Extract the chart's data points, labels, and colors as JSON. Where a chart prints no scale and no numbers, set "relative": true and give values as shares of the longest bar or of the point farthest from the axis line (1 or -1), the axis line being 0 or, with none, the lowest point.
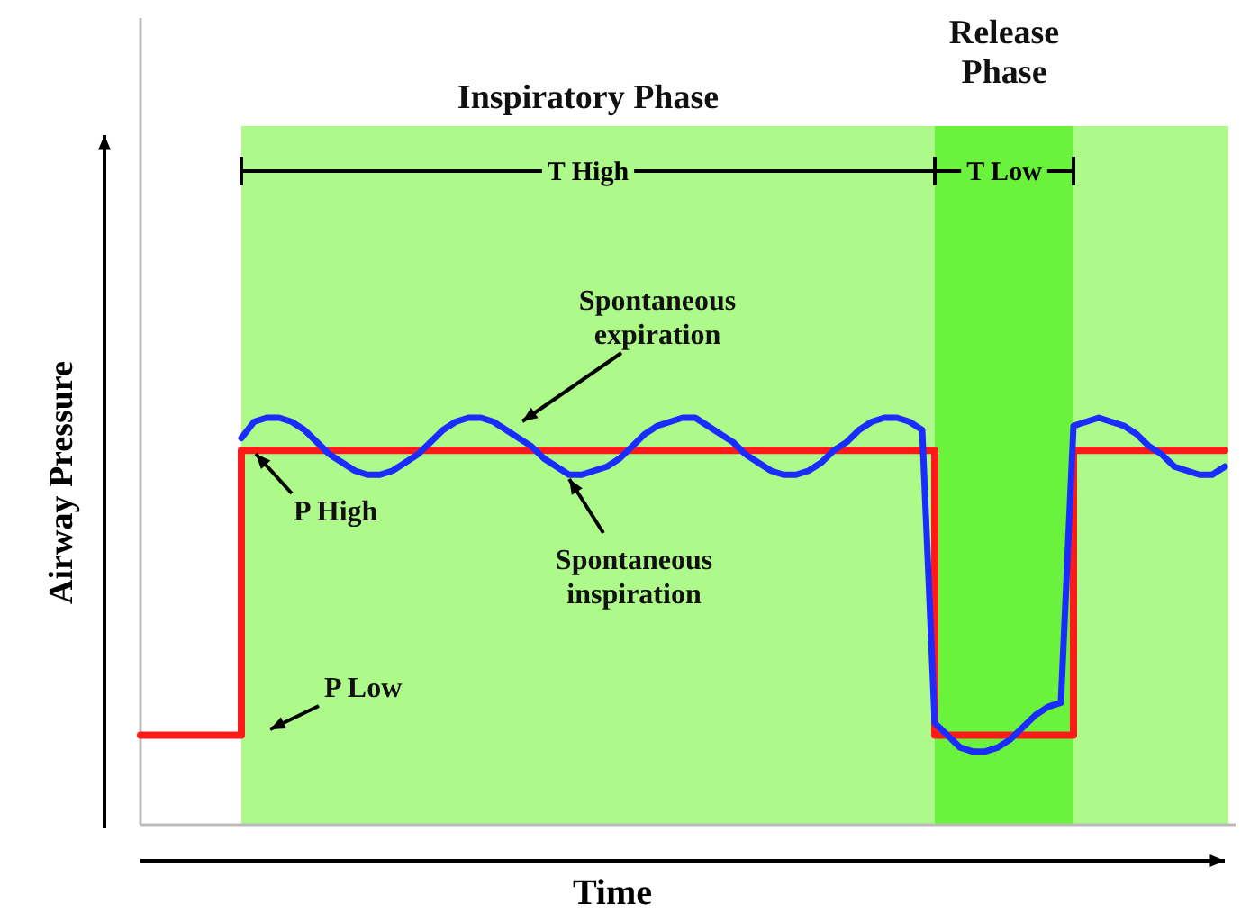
{
  "chart_data": {
    "type": "line",
    "relative": true,
    "xlabel": "Time",
    "ylabel": "Airway Pressure",
    "categories": [
      null,
      null,
      null,
      null,
      null,
      null,
      null,
      null,
      null,
      null,
      null,
      null,
      null,
      null,
      null,
      null,
      null,
      null,
      null,
      null,
      null,
      null,
      null,
      null,
      null,
      null,
      null,
      null,
      null,
      null,
      null,
      null,
      null,
      null,
      null,
      null,
      null,
      null,
      null,
      null,
      null,
      null,
      null,
      null,
      null,
      null,
      null,
      null,
      null,
      null,
      null,
      null,
      null,
      null,
      null,
      null,
      null,
      null,
      null,
      null,
      null,
      null,
      null,
      null,
      null,
      null,
      null,
      null,
      null,
      null,
      null,
      null,
      null,
      null,
      null,
      null,
      null,
      null,
      null,
      null,
      null,
      null,
      null,
      null,
      null,
      null,
      null
    ],
    "series": [
      {
        "type": "step",
        "color": "#ff1a1a",
        "values": [
          0.22,
          0.22,
          0.22,
          0.22,
          0.22,
          0.22,
          0.22,
          0.22,
          0.92,
          0.92,
          0.92,
          0.92,
          0.92,
          0.92,
          0.92,
          0.92,
          0.92,
          0.92,
          0.92,
          0.92,
          0.92,
          0.92,
          0.92,
          0.92,
          0.92,
          0.92,
          0.92,
          0.92,
          0.92,
          0.92,
          0.92,
          0.92,
          0.92,
          0.92,
          0.92,
          0.92,
          0.92,
          0.92,
          0.92,
          0.92,
          0.92,
          0.92,
          0.92,
          0.92,
          0.92,
          0.92,
          0.92,
          0.92,
          0.92,
          0.92,
          0.92,
          0.92,
          0.92,
          0.92,
          0.92,
          0.92,
          0.92,
          0.92,
          0.92,
          0.92,
          0.92,
          0.92,
          0.92,
          0.22,
          0.22,
          0.22,
          0.22,
          0.22,
          0.22,
          0.22,
          0.22,
          0.22,
          0.22,
          0.22,
          0.92,
          0.92,
          0.92,
          0.92,
          0.92,
          0.92,
          0.92,
          0.92,
          0.92,
          0.92,
          0.92,
          0.92,
          0.92
        ]
      },
      {
        "type": "line",
        "color": "#1a2cff",
        "values": [
          null,
          null,
          null,
          null,
          null,
          null,
          null,
          null,
          0.95,
          0.99,
          1.0,
          1.0,
          0.99,
          0.97,
          0.94,
          0.91,
          0.89,
          0.87,
          0.86,
          0.86,
          0.87,
          0.89,
          0.91,
          0.94,
          0.97,
          0.99,
          1.0,
          1.0,
          0.99,
          0.97,
          0.95,
          0.93,
          0.9,
          0.88,
          0.86,
          0.86,
          0.87,
          0.88,
          0.9,
          0.93,
          0.96,
          0.98,
          0.99,
          1.0,
          1.0,
          0.98,
          0.96,
          0.94,
          0.91,
          0.89,
          0.87,
          0.86,
          0.86,
          0.87,
          0.89,
          0.92,
          0.94,
          0.97,
          0.99,
          1.0,
          1.0,
          0.99,
          0.97,
          0.25,
          0.22,
          0.19,
          0.18,
          0.18,
          0.19,
          0.21,
          0.24,
          0.27,
          0.29,
          0.3,
          0.98,
          0.99,
          1.0,
          0.99,
          0.98,
          0.96,
          0.93,
          0.91,
          0.88,
          0.87,
          0.86,
          0.86,
          0.88
        ]
      }
    ],
    "annotations": [
      "Inspiratory Phase",
      "Release Phase",
      "T High",
      "T Low",
      "Spontaneous expiration",
      "Spontaneous inspiration",
      "P High",
      "P Low"
    ]
  }
}
